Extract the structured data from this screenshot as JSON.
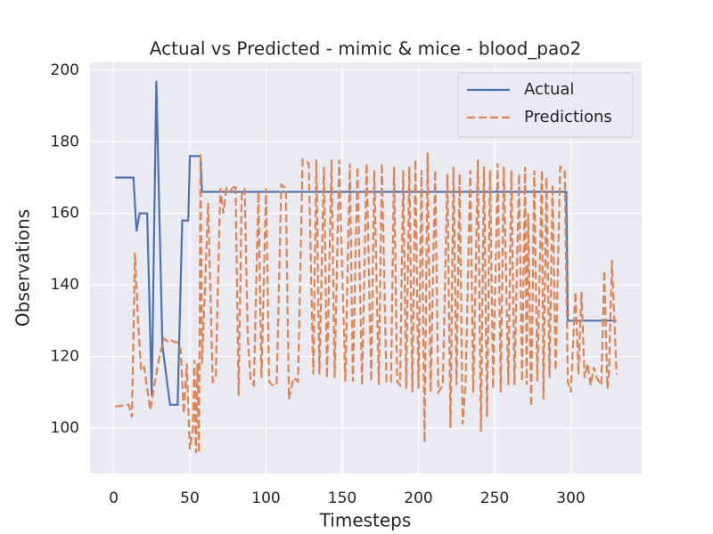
{
  "chart_data": {
    "type": "line",
    "title": "Actual vs Predicted - mimic & mice - blood_pao2",
    "x_label": "Timesteps",
    "y_label": "Observations",
    "xlim": [
      -15.5,
      346.5
    ],
    "ylim": [
      87.3,
      202.2
    ],
    "xticks": [
      0,
      50,
      100,
      150,
      200,
      250,
      300
    ],
    "yticks": [
      100,
      120,
      140,
      160,
      180,
      200
    ],
    "grid": true,
    "legend": "upper right",
    "series": [
      {
        "name": "Actual",
        "color": "#4c72b0",
        "dash": "solid",
        "x": [
          1,
          13,
          15,
          17,
          22,
          25,
          28,
          32,
          37,
          42,
          45,
          49,
          50,
          57,
          58,
          297,
          298,
          330
        ],
        "values": [
          170,
          170,
          155,
          160,
          160,
          109,
          197,
          123,
          106.5,
          106.5,
          158,
          158,
          176,
          176,
          166,
          166,
          130,
          130
        ]
      },
      {
        "name": "Predictions",
        "color": "#dd8452",
        "dash": "dashed",
        "x": [
          1,
          10,
          12,
          14,
          16,
          18,
          20,
          22,
          24,
          26,
          30,
          33,
          36,
          38,
          40,
          42,
          44,
          46,
          48,
          50,
          52,
          53,
          54,
          55,
          56,
          57,
          58,
          60,
          62,
          65,
          67,
          70,
          72,
          74,
          76,
          80,
          82,
          84,
          86,
          88,
          90,
          92,
          95,
          97,
          100,
          102,
          104,
          107,
          110,
          113,
          115,
          118,
          121,
          124,
          128,
          131,
          133,
          135,
          138,
          140,
          143,
          145,
          148,
          152,
          155,
          157,
          160,
          163,
          166,
          169,
          171,
          174,
          176,
          179,
          182,
          184,
          186,
          188,
          190,
          192,
          194,
          196,
          198,
          200,
          202,
          204,
          206,
          208,
          211,
          213,
          216,
          219,
          221,
          223,
          225,
          227,
          229,
          231,
          234,
          236,
          239,
          241,
          243,
          245,
          247,
          249,
          252,
          254,
          256,
          259,
          261,
          263,
          266,
          268,
          270,
          271,
          272,
          274,
          276,
          278,
          281,
          282,
          284,
          286,
          288,
          290,
          293,
          296,
          298,
          300,
          303,
          305,
          307,
          309,
          311,
          313,
          315,
          317,
          320,
          322,
          324,
          325,
          327,
          328,
          330
        ],
        "values": [
          106,
          106.5,
          103,
          149,
          130,
          116,
          117,
          111,
          105,
          110,
          120,
          125,
          124,
          124.5,
          124,
          124,
          122,
          104,
          118,
          94,
          100,
          119,
          93,
          118,
          93,
          177,
          118,
          140,
          163,
          113,
          114,
          167,
          160,
          167,
          166,
          168,
          109,
          165,
          167,
          125,
          113,
          112,
          166,
          114,
          167,
          113,
          112,
          112,
          168,
          167,
          108,
          114,
          113,
          175,
          174,
          115,
          175,
          115,
          173,
          114,
          175,
          114,
          175,
          113,
          174,
          113,
          173,
          112,
          174,
          113,
          172,
          112,
          174,
          113,
          113,
          173,
          113,
          112,
          172,
          111,
          173,
          110,
          175,
          111,
          172,
          96,
          177,
          110,
          172,
          110,
          112,
          171,
          100,
          173,
          112,
          171,
          101,
          113,
          172,
          110,
          175,
          99,
          173,
          103,
          172,
          111,
          174,
          110,
          173,
          112,
          172,
          112,
          171,
          113,
          173,
          112,
          160,
          106,
          172,
          113,
          172,
          108,
          170,
          114,
          168,
          116,
          173,
          172,
          113,
          110,
          138,
          115,
          138,
          114,
          118,
          112,
          117,
          114,
          112,
          144,
          111,
          115,
          147,
          136,
          115
        ]
      }
    ]
  }
}
